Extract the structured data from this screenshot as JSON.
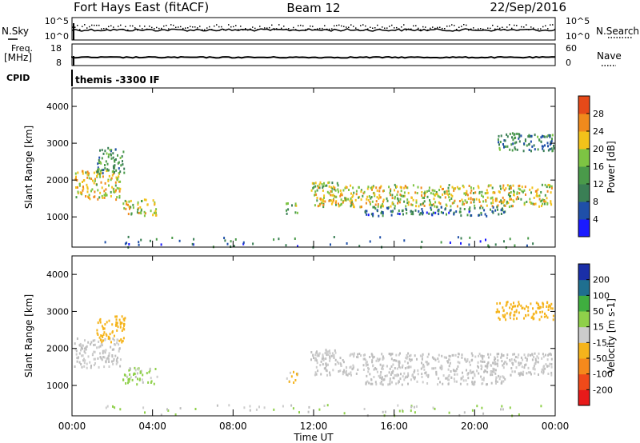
{
  "header": {
    "station": "Fort Hays East (fitACF)",
    "beam": "Beam 12",
    "date": "22/Sep/2016"
  },
  "noise_panel": {
    "left_label": "N.Sky",
    "right_label": "N.Search",
    "left_ticks": [
      "10^5",
      "10^0"
    ],
    "right_ticks": [
      "10^5",
      "10^0"
    ]
  },
  "freq_panel": {
    "left_label_1": "Freq.",
    "left_label_2": "[MHz]",
    "right_label": "Nave",
    "left_ticks": [
      "18",
      "8"
    ],
    "right_ticks": [
      "60",
      "0"
    ]
  },
  "cpid": {
    "label": "CPID",
    "value": "themis -3300 IF"
  },
  "colors": {
    "power_scale": [
      "#1a1aff",
      "#1f4fa8",
      "#3a7f55",
      "#4a9a4a",
      "#7dc443",
      "#f2c21a",
      "#f08a1c",
      "#e64a19",
      "#e81a1a"
    ],
    "velocity_scale": [
      "#e81a1a",
      "#f04a1a",
      "#f5891c",
      "#f5b41c",
      "#cccccc",
      "#8fd04a",
      "#3fae3f",
      "#1f6f8f",
      "#1a2fa8"
    ],
    "ground_scatter": "#bdbdbd"
  },
  "chart_data": {
    "type": "heatmap",
    "x": {
      "label": "Time UT",
      "ticks": [
        "00:00",
        "04:00",
        "08:00",
        "12:00",
        "16:00",
        "20:00",
        "00:00"
      ],
      "range_hours": [
        0,
        24
      ]
    },
    "y": {
      "label": "Slant Range [km]",
      "ticks": [
        "1000",
        "2000",
        "3000",
        "4000"
      ],
      "range_km": [
        180,
        4500
      ]
    },
    "panels": [
      {
        "name": "power",
        "colorbar": {
          "label": "Power [dB]",
          "ticks": [
            "4",
            "8",
            "12",
            "16",
            "20",
            "24",
            "28"
          ],
          "range": [
            0,
            30
          ]
        },
        "echo_regions": [
          {
            "t0": 0.1,
            "t1": 2.4,
            "r0": 1500,
            "r1": 2300,
            "value": 18
          },
          {
            "t0": 1.2,
            "t1": 2.6,
            "r0": 2200,
            "r1": 2900,
            "value": 9
          },
          {
            "t0": 2.5,
            "t1": 4.2,
            "r0": 1050,
            "r1": 1500,
            "value": 17
          },
          {
            "t0": 10.6,
            "t1": 11.2,
            "r0": 1100,
            "r1": 1400,
            "value": 13
          },
          {
            "t0": 11.8,
            "t1": 13.2,
            "r0": 1700,
            "r1": 2000,
            "value": 14
          },
          {
            "t0": 12.0,
            "t1": 23.8,
            "r0": 1300,
            "r1": 1900,
            "value": 17
          },
          {
            "t0": 14.5,
            "t1": 21.5,
            "r0": 1050,
            "r1": 1300,
            "value": 7
          },
          {
            "t0": 21.0,
            "t1": 23.9,
            "r0": 2800,
            "r1": 3300,
            "value": 8
          },
          {
            "t0": 1.5,
            "t1": 23.5,
            "r0": 200,
            "r1": 500,
            "value": 6
          }
        ]
      },
      {
        "name": "velocity",
        "colorbar": {
          "label": "Velocity [m s-1]",
          "ticks": [
            "-200",
            "-100",
            "-50",
            "-15",
            "15",
            "50",
            "100",
            "200"
          ],
          "range": [
            -250,
            250
          ]
        },
        "echo_regions": [
          {
            "t0": 0.1,
            "t1": 2.4,
            "r0": 1500,
            "r1": 2300,
            "value": 0
          },
          {
            "t0": 1.2,
            "t1": 2.6,
            "r0": 2200,
            "r1": 2900,
            "value": -60
          },
          {
            "t0": 2.5,
            "t1": 4.2,
            "r0": 1050,
            "r1": 1500,
            "value": 40
          },
          {
            "t0": 10.6,
            "t1": 11.2,
            "r0": 1100,
            "r1": 1400,
            "value": -40
          },
          {
            "t0": 11.8,
            "t1": 13.2,
            "r0": 1700,
            "r1": 2000,
            "value": 0
          },
          {
            "t0": 12.0,
            "t1": 23.8,
            "r0": 1300,
            "r1": 1900,
            "value": 0
          },
          {
            "t0": 14.5,
            "t1": 21.5,
            "r0": 1050,
            "r1": 1300,
            "value": 0
          },
          {
            "t0": 21.0,
            "t1": 23.9,
            "r0": 2800,
            "r1": 3300,
            "value": -60
          },
          {
            "t0": 1.5,
            "t1": 23.5,
            "r0": 200,
            "r1": 500,
            "value": 30
          }
        ]
      }
    ]
  }
}
